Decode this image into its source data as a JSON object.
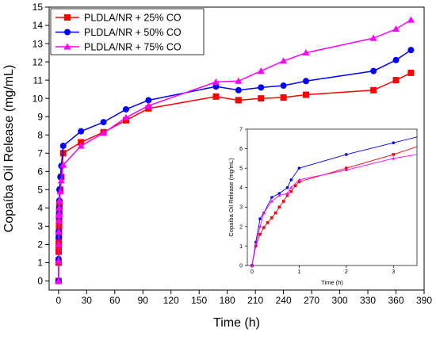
{
  "chart_data": [
    {
      "type": "line",
      "xlabel": "Time (h)",
      "ylabel": "Copaíba Oil Release (mg/mL)",
      "xlim": [
        -10,
        390
      ],
      "ylim": [
        -0.5,
        15
      ],
      "xticks": [
        "0",
        "30",
        "60",
        "90",
        "120",
        "150",
        "180",
        "210",
        "240",
        "270",
        "300",
        "330",
        "360",
        "390"
      ],
      "yticks": [
        "0",
        "1",
        "2",
        "3",
        "4",
        "5",
        "6",
        "7",
        "8",
        "9",
        "10",
        "11",
        "12",
        "13",
        "14",
        "15"
      ],
      "legend_position": "top-left",
      "series": [
        {
          "name": "PLDLA/NR + 25% CO",
          "color": "#ff0000",
          "marker": "square",
          "x": [
            0,
            0.08,
            0.17,
            0.25,
            0.33,
            0.42,
            0.5,
            0.58,
            0.67,
            0.75,
            0.83,
            0.92,
            1,
            2,
            3,
            5,
            24,
            48,
            72,
            96,
            168,
            192,
            216,
            240,
            264,
            336,
            360,
            376
          ],
          "y": [
            0,
            1.0,
            1.6,
            1.95,
            2.2,
            2.45,
            2.7,
            3.0,
            3.3,
            3.6,
            3.8,
            4.1,
            4.3,
            5.0,
            5.7,
            7.0,
            7.6,
            8.15,
            8.8,
            9.45,
            10.1,
            9.9,
            10.0,
            10.05,
            10.2,
            10.45,
            11.0,
            11.4
          ]
        },
        {
          "name": "PLDLA/NR + 50% CO",
          "color": "#0000ff",
          "marker": "circle",
          "x": [
            0,
            0.08,
            0.17,
            0.25,
            0.42,
            0.58,
            0.75,
            0.83,
            1,
            2,
            3,
            5,
            24,
            48,
            72,
            96,
            168,
            192,
            216,
            240,
            264,
            336,
            360,
            376
          ],
          "y": [
            0,
            1.2,
            2.4,
            2.7,
            3.5,
            3.7,
            4.0,
            4.4,
            5.0,
            5.7,
            6.3,
            7.4,
            8.2,
            8.7,
            9.4,
            9.9,
            10.65,
            10.45,
            10.6,
            10.7,
            10.95,
            11.5,
            12.1,
            12.65
          ]
        },
        {
          "name": "PLDLA/NR + 75% CO",
          "color": "#ff00ff",
          "marker": "triangle",
          "x": [
            0,
            0.08,
            0.17,
            0.25,
            0.42,
            0.58,
            0.75,
            0.83,
            1,
            2,
            3,
            5,
            24,
            48,
            72,
            96,
            168,
            192,
            216,
            240,
            264,
            336,
            360,
            376
          ],
          "y": [
            0,
            1.1,
            2.0,
            2.7,
            3.3,
            3.6,
            3.7,
            4.0,
            4.4,
            4.9,
            5.5,
            6.35,
            7.4,
            8.1,
            8.95,
            9.6,
            10.9,
            10.95,
            11.5,
            12.05,
            12.5,
            13.3,
            13.8,
            14.3
          ]
        }
      ]
    },
    {
      "type": "line",
      "xlabel": "Time (h)",
      "ylabel": "Copaíba Oil Release (mg/mL)",
      "xlim": [
        -0.1,
        3.5
      ],
      "ylim": [
        0,
        7
      ],
      "xticks": [
        "0",
        "1",
        "2",
        "3"
      ],
      "yticks": [
        "0",
        "1",
        "2",
        "3",
        "4",
        "5",
        "6",
        "7"
      ],
      "series": [
        {
          "color": "#ff0000",
          "marker": "square",
          "x": [
            0,
            0.08,
            0.17,
            0.25,
            0.33,
            0.42,
            0.5,
            0.58,
            0.67,
            0.75,
            0.83,
            0.92,
            1,
            2,
            3,
            3.5
          ],
          "y": [
            0,
            1.0,
            1.6,
            1.95,
            2.2,
            2.45,
            2.7,
            3.0,
            3.3,
            3.6,
            3.8,
            4.1,
            4.3,
            5.0,
            5.7,
            6.1
          ]
        },
        {
          "color": "#0000ff",
          "marker": "circle",
          "x": [
            0,
            0.08,
            0.17,
            0.25,
            0.42,
            0.58,
            0.75,
            0.83,
            1,
            2,
            3,
            3.5
          ],
          "y": [
            0,
            1.2,
            2.4,
            2.7,
            3.5,
            3.7,
            4.0,
            4.4,
            5.0,
            5.7,
            6.3,
            6.6
          ]
        },
        {
          "color": "#ff00ff",
          "marker": "triangle",
          "x": [
            0,
            0.08,
            0.17,
            0.25,
            0.42,
            0.58,
            0.75,
            0.83,
            1,
            2,
            3,
            3.5
          ],
          "y": [
            0,
            1.1,
            2.0,
            2.7,
            3.3,
            3.6,
            3.7,
            4.0,
            4.4,
            4.9,
            5.5,
            5.7
          ]
        }
      ]
    }
  ]
}
